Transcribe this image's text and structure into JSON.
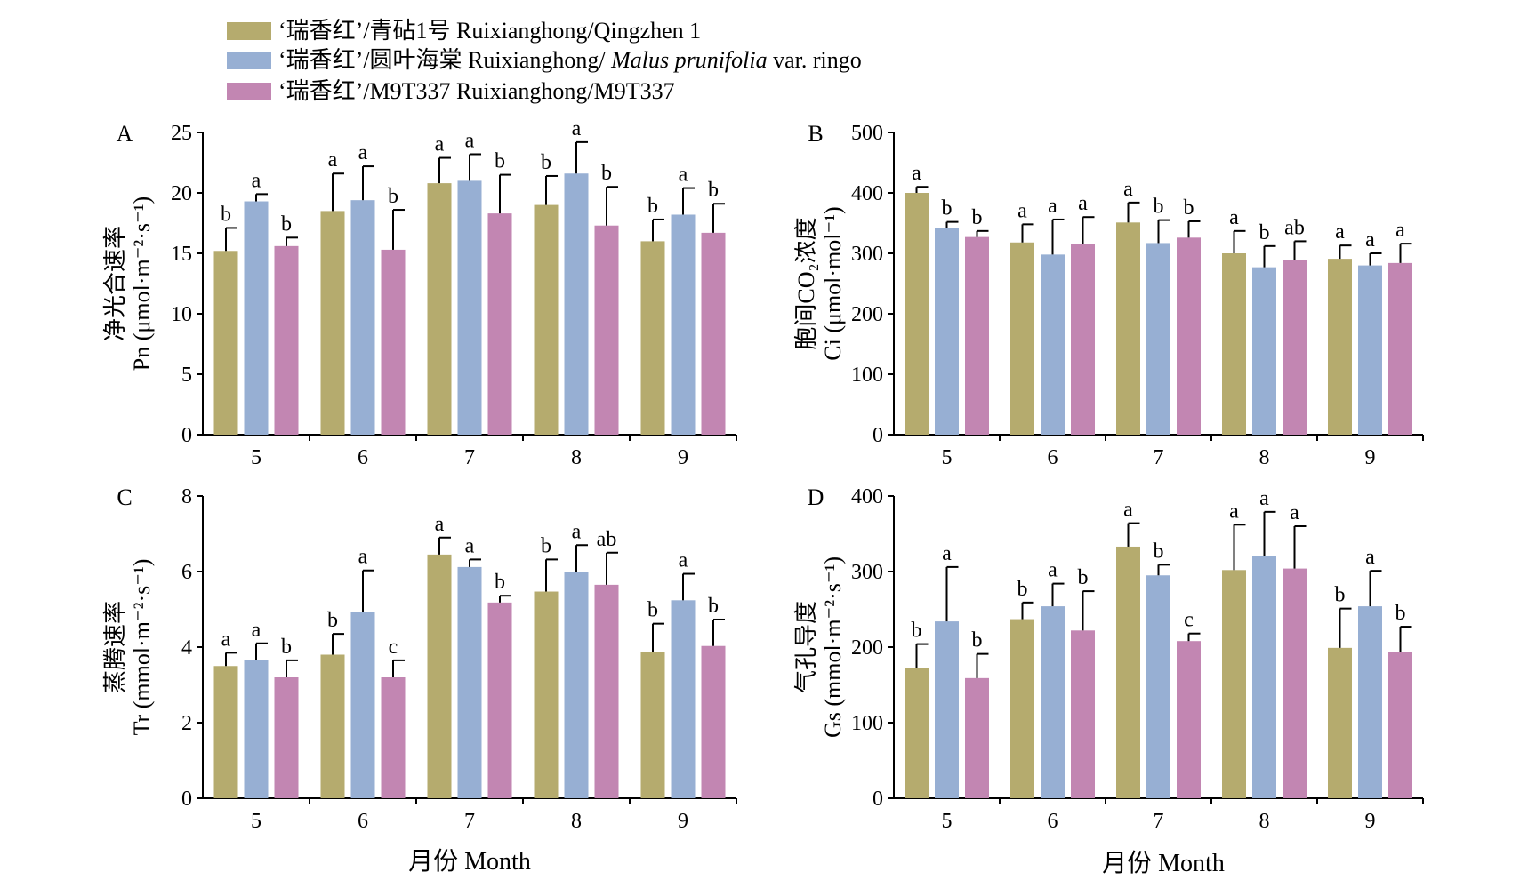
{
  "legend": [
    {
      "text": "‘瑞香红’/青砧1号 Ruixianghong/Qingzhen 1",
      "italic": "",
      "tail": "",
      "color": "#b5ab6e"
    },
    {
      "text": "‘瑞香红’/圆叶海棠 Ruixianghong/ ",
      "italic": "Malus prunifolia",
      "tail": " var. ringo",
      "color": "#97afd3"
    },
    {
      "text": "‘瑞香红’/M9T337 Ruixianghong/M9T337",
      "italic": "",
      "tail": "",
      "color": "#c286b2"
    }
  ],
  "xlabel": "月份 Month",
  "chart_data": [
    {
      "panel": "A",
      "type": "bar",
      "ylabel_cn": "净光合速率",
      "ylabel_en": "Pn (μmol·m⁻²·s⁻¹)",
      "categories": [
        "5",
        "6",
        "7",
        "8",
        "9"
      ],
      "ylim": [
        0,
        25
      ],
      "yticks": [
        0,
        5,
        10,
        15,
        20,
        25
      ],
      "series": [
        {
          "values": [
            15.2,
            18.5,
            20.8,
            19.0,
            16.0
          ],
          "errors": [
            1.9,
            3.1,
            2.1,
            2.4,
            1.8
          ],
          "labels": [
            "b",
            "a",
            "a",
            "b",
            "b"
          ]
        },
        {
          "values": [
            19.3,
            19.4,
            21.0,
            21.6,
            18.2
          ],
          "errors": [
            0.6,
            2.8,
            2.2,
            2.6,
            2.2
          ],
          "labels": [
            "a",
            "a",
            "a",
            "a",
            "a"
          ]
        },
        {
          "values": [
            15.6,
            15.3,
            18.3,
            17.3,
            16.7
          ],
          "errors": [
            0.7,
            3.3,
            3.2,
            3.2,
            2.4
          ],
          "labels": [
            "b",
            "b",
            "b",
            "b",
            "b"
          ]
        }
      ]
    },
    {
      "panel": "B",
      "type": "bar",
      "ylabel_cn": "胞间CO₂浓度",
      "ylabel_en": "Ci (μmol·mol⁻¹)",
      "categories": [
        "5",
        "6",
        "7",
        "8",
        "9"
      ],
      "ylim": [
        0,
        500
      ],
      "yticks": [
        0,
        100,
        200,
        300,
        400,
        500
      ],
      "series": [
        {
          "values": [
            400,
            318,
            351,
            300,
            291
          ],
          "errors": [
            10,
            30,
            33,
            37,
            22
          ],
          "labels": [
            "a",
            "a",
            "a",
            "a",
            "a"
          ]
        },
        {
          "values": [
            342,
            298,
            317,
            277,
            280
          ],
          "errors": [
            10,
            58,
            38,
            35,
            20
          ],
          "labels": [
            "b",
            "a",
            "b",
            "b",
            "a"
          ]
        },
        {
          "values": [
            327,
            315,
            326,
            289,
            284
          ],
          "errors": [
            10,
            45,
            27,
            31,
            32
          ],
          "labels": [
            "b",
            "a",
            "b",
            "ab",
            "a"
          ]
        }
      ]
    },
    {
      "panel": "C",
      "type": "bar",
      "ylabel_cn": "蒸腾速率",
      "ylabel_en": "Tr (mmol·m⁻²·s⁻¹)",
      "categories": [
        "5",
        "6",
        "7",
        "8",
        "9"
      ],
      "ylim": [
        0,
        8
      ],
      "yticks": [
        0,
        2,
        4,
        6,
        8
      ],
      "series": [
        {
          "values": [
            3.5,
            3.8,
            6.45,
            5.47,
            3.87
          ],
          "errors": [
            0.35,
            0.55,
            0.45,
            0.85,
            0.75
          ],
          "labels": [
            "a",
            "b",
            "a",
            "b",
            "b"
          ]
        },
        {
          "values": [
            3.65,
            4.93,
            6.12,
            6.0,
            5.24
          ],
          "errors": [
            0.45,
            1.1,
            0.2,
            0.7,
            0.7
          ],
          "labels": [
            "a",
            "a",
            "a",
            "a",
            "a"
          ]
        },
        {
          "values": [
            3.2,
            3.2,
            5.18,
            5.65,
            4.03
          ],
          "errors": [
            0.45,
            0.45,
            0.18,
            0.85,
            0.7
          ],
          "labels": [
            "b",
            "c",
            "b",
            "ab",
            "b"
          ]
        }
      ]
    },
    {
      "panel": "D",
      "type": "bar",
      "ylabel_cn": "气孔导度",
      "ylabel_en": "Gs (mmol·m⁻²·s⁻¹)",
      "categories": [
        "5",
        "6",
        "7",
        "8",
        "9"
      ],
      "ylim": [
        0,
        400
      ],
      "yticks": [
        0,
        100,
        200,
        300,
        400
      ],
      "series": [
        {
          "values": [
            172,
            237,
            333,
            302,
            199
          ],
          "errors": [
            32,
            22,
            31,
            60,
            52
          ],
          "labels": [
            "b",
            "b",
            "a",
            "a",
            "b"
          ]
        },
        {
          "values": [
            234,
            254,
            295,
            321,
            254
          ],
          "errors": [
            72,
            30,
            14,
            58,
            47
          ],
          "labels": [
            "a",
            "a",
            "b",
            "a",
            "a"
          ]
        },
        {
          "values": [
            159,
            222,
            208,
            304,
            193
          ],
          "errors": [
            32,
            52,
            10,
            56,
            34
          ],
          "labels": [
            "b",
            "b",
            "c",
            "a",
            "b"
          ]
        }
      ]
    }
  ]
}
